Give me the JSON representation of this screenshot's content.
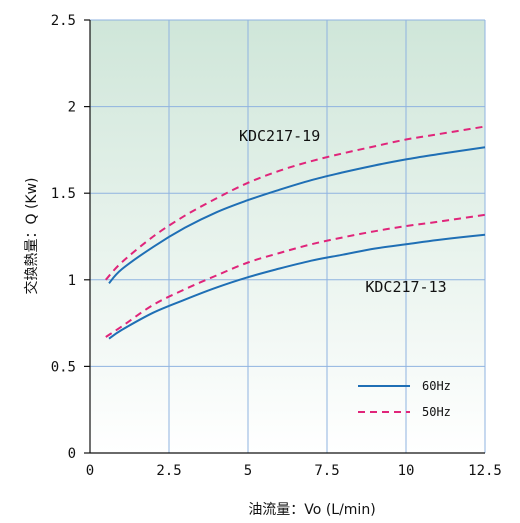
{
  "chart_data": {
    "type": "line",
    "title": "",
    "xlabel": "油流量：Vo (L/min)",
    "ylabel": "交換熱量：Q (Kw)",
    "xlim": [
      0,
      12.5
    ],
    "ylim": [
      0,
      2.5
    ],
    "xticks": [
      0,
      2.5,
      5,
      7.5,
      10,
      12.5
    ],
    "xtick_labels": [
      "0",
      "2.5",
      "5",
      "7.5",
      "10",
      "12.5"
    ],
    "yticks": [
      0,
      0.5,
      1,
      1.5,
      2,
      2.5
    ],
    "ytick_labels": [
      "0",
      "0.5",
      "1",
      "1.5",
      "2",
      "2.5"
    ],
    "grid": true,
    "legend_position": "bottom-right",
    "legend": [
      {
        "label": "60Hz",
        "color": "#1f6fb5",
        "style": "solid"
      },
      {
        "label": "50Hz",
        "color": "#e0257a",
        "style": "dashed"
      }
    ],
    "annotations": [
      {
        "text": "KDC217-19",
        "x": 6,
        "y": 1.8
      },
      {
        "text": "KDC217-13",
        "x": 10,
        "y": 0.93
      }
    ],
    "series": [
      {
        "model": "KDC217-19",
        "freq": "60Hz",
        "color": "#1f6fb5",
        "style": "solid",
        "x": [
          0.6,
          1,
          2,
          3,
          4,
          5,
          6,
          7,
          8,
          9,
          10,
          11,
          12.5
        ],
        "y": [
          0.98,
          1.06,
          1.19,
          1.3,
          1.39,
          1.46,
          1.52,
          1.575,
          1.62,
          1.66,
          1.695,
          1.725,
          1.765
        ]
      },
      {
        "model": "KDC217-19",
        "freq": "50Hz",
        "color": "#e0257a",
        "style": "dashed",
        "x": [
          0.5,
          1,
          2,
          3,
          4,
          5,
          6,
          7,
          8,
          9,
          10,
          11,
          12.5
        ],
        "y": [
          1.0,
          1.1,
          1.25,
          1.37,
          1.47,
          1.56,
          1.63,
          1.685,
          1.73,
          1.77,
          1.81,
          1.84,
          1.885
        ]
      },
      {
        "model": "KDC217-13",
        "freq": "60Hz",
        "color": "#1f6fb5",
        "style": "solid",
        "x": [
          0.6,
          1,
          2,
          3,
          4,
          5,
          6,
          7,
          8,
          9,
          10,
          11,
          12.5
        ],
        "y": [
          0.66,
          0.71,
          0.81,
          0.885,
          0.955,
          1.015,
          1.065,
          1.11,
          1.145,
          1.18,
          1.205,
          1.23,
          1.26
        ]
      },
      {
        "model": "KDC217-13",
        "freq": "50Hz",
        "color": "#e0257a",
        "style": "dashed",
        "x": [
          0.5,
          1,
          2,
          3,
          4,
          5,
          6,
          7,
          8,
          9,
          10,
          11,
          12.5
        ],
        "y": [
          0.67,
          0.73,
          0.855,
          0.945,
          1.025,
          1.1,
          1.155,
          1.205,
          1.245,
          1.28,
          1.31,
          1.335,
          1.375
        ]
      }
    ]
  }
}
